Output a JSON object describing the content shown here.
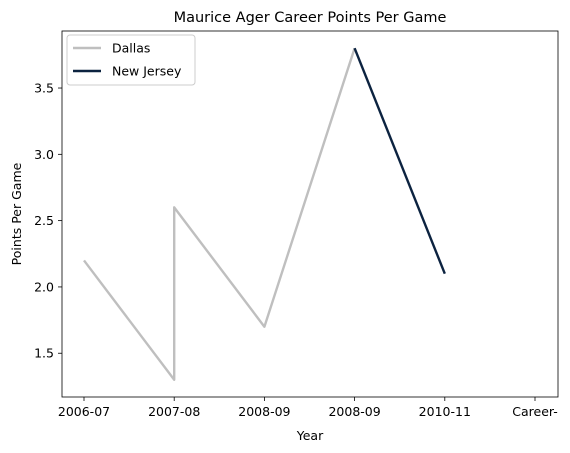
{
  "chart_data": {
    "type": "line",
    "title": "Maurice Ager Career Points Per Game",
    "xlabel": "Year",
    "ylabel": "Points Per Game",
    "categories": [
      "2006-07",
      "2007-08",
      "2008-09",
      "2008-09",
      "2010-11",
      "Career-"
    ],
    "ylim": [
      1.17,
      3.93
    ],
    "yticks": [
      1.5,
      2.0,
      2.5,
      3.0,
      3.5
    ],
    "ytick_labels": [
      "1.5",
      "2.0",
      "2.5",
      "3.0",
      "3.5"
    ],
    "grid": false,
    "legend_position": "top-left",
    "series": [
      {
        "name": "Dallas",
        "color": "#bfbfbf",
        "points": [
          {
            "x": 0,
            "y": 2.2
          },
          {
            "x": 1,
            "y": 1.3
          },
          {
            "x": 1,
            "y": 2.6
          },
          {
            "x": 2,
            "y": 1.7
          },
          {
            "x": 3,
            "y": 3.8
          }
        ]
      },
      {
        "name": "New Jersey",
        "color": "#0c2340",
        "points": [
          {
            "x": 3,
            "y": 3.8
          },
          {
            "x": 4,
            "y": 2.1
          }
        ]
      }
    ]
  }
}
